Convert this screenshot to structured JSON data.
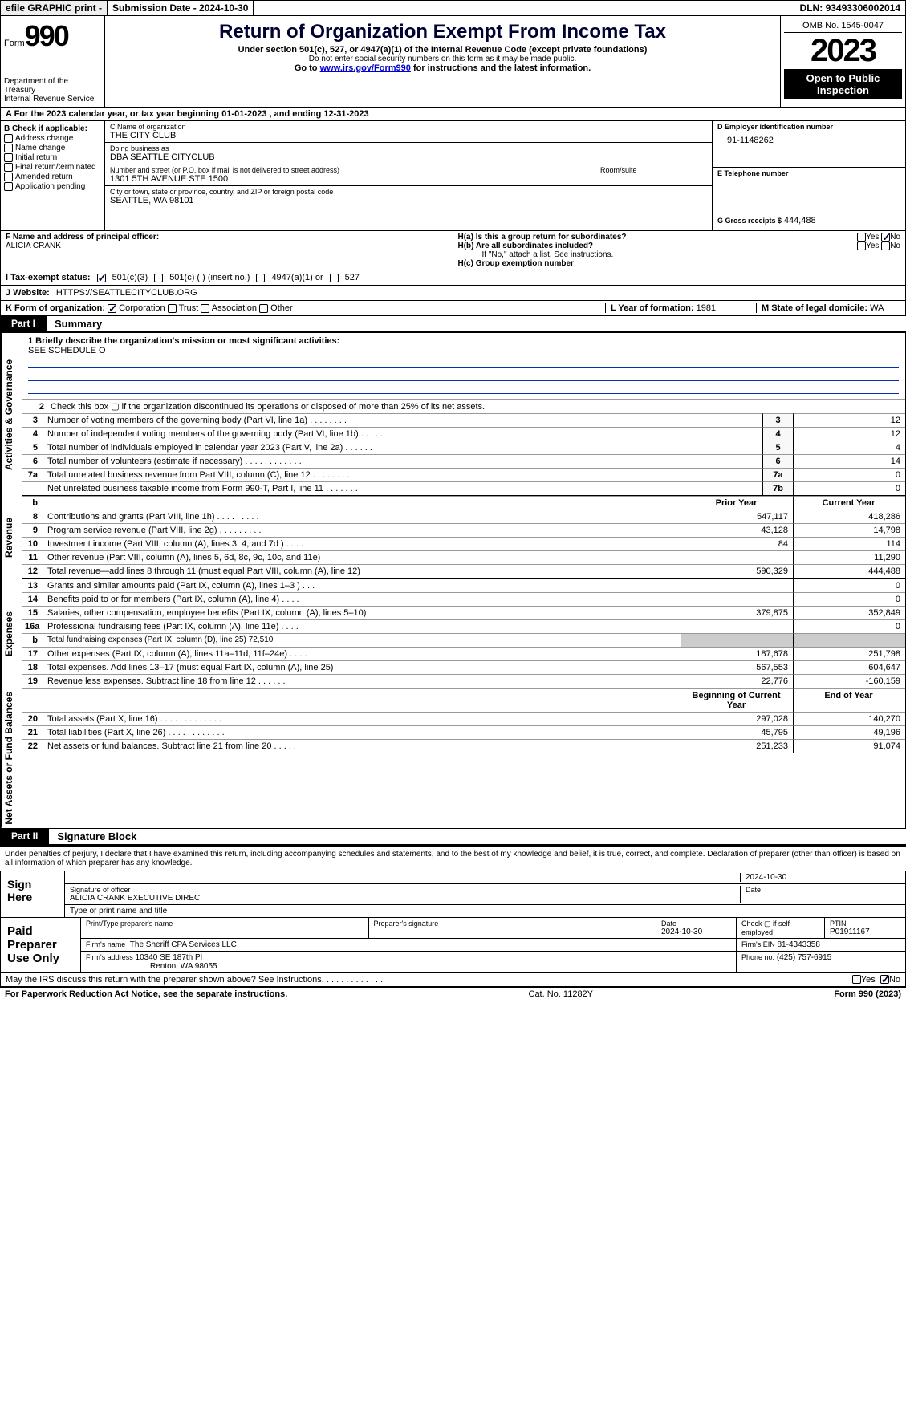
{
  "topbar": {
    "efile": "efile GRAPHIC print -",
    "submission": "Submission Date - 2024-10-30",
    "dln_label": "DLN:",
    "dln": "93493306002014"
  },
  "header": {
    "form_word": "Form",
    "form_num": "990",
    "dept": "Department of the Treasury\nInternal Revenue Service",
    "title": "Return of Organization Exempt From Income Tax",
    "subtitle": "Under section 501(c), 527, or 4947(a)(1) of the Internal Revenue Code (except private foundations)",
    "note": "Do not enter social security numbers on this form as it may be made public.",
    "goto_pre": "Go to ",
    "goto_link": "www.irs.gov/Form990",
    "goto_post": " for instructions and the latest information.",
    "omb": "OMB No. 1545-0047",
    "year": "2023",
    "open": "Open to Public Inspection"
  },
  "sectionA": "A  For the 2023 calendar year, or tax year beginning 01-01-2023    , and ending 12-31-2023",
  "b": {
    "label": "B Check if applicable:",
    "items": [
      "Address change",
      "Name change",
      "Initial return",
      "Final return/terminated",
      "Amended return",
      "Application pending"
    ]
  },
  "c": {
    "name_lbl": "C Name of organization",
    "name": "THE CITY CLUB",
    "dba_lbl": "Doing business as",
    "dba": "DBA SEATTLE CITYCLUB",
    "addr_lbl": "Number and street (or P.O. box if mail is not delivered to street address)",
    "addr": "1301 5TH AVENUE STE 1500",
    "room_lbl": "Room/suite",
    "city_lbl": "City or town, state or province, country, and ZIP or foreign postal code",
    "city": "SEATTLE, WA   98101"
  },
  "d": {
    "ein_lbl": "D Employer identification number",
    "ein": "91-1148262",
    "tel_lbl": "E Telephone number",
    "gross_lbl": "G Gross receipts $",
    "gross": "444,488"
  },
  "f": {
    "lbl": "F  Name and address of principal officer:",
    "name": "ALICIA CRANK"
  },
  "h": {
    "a_lbl": "H(a)  Is this a group return for subordinates?",
    "b_lbl": "H(b)  Are all subordinates included?",
    "b_note": "If \"No,\" attach a list. See instructions.",
    "c_lbl": "H(c)  Group exemption number",
    "yes": "Yes",
    "no": "No"
  },
  "i": {
    "lbl": "I   Tax-exempt status:",
    "o1": "501(c)(3)",
    "o2": "501(c) (  ) (insert no.)",
    "o3": "4947(a)(1) or",
    "o4": "527"
  },
  "j": {
    "lbl": "J   Website:",
    "val": "HTTPS://SEATTLECITYCLUB.ORG"
  },
  "k": {
    "lbl": "K Form of organization:",
    "o1": "Corporation",
    "o2": "Trust",
    "o3": "Association",
    "o4": "Other",
    "l_lbl": "L Year of formation:",
    "l_val": "1981",
    "m_lbl": "M State of legal domicile:",
    "m_val": "WA"
  },
  "part1": {
    "tag": "Part I",
    "title": "Summary"
  },
  "mission": {
    "lbl": "1   Briefly describe the organization's mission or most significant activities:",
    "val": "SEE SCHEDULE O"
  },
  "gov_rows": [
    {
      "n": "2",
      "t": "Check this box ▢ if the organization discontinued its operations or disposed of more than 25% of its net assets."
    },
    {
      "n": "3",
      "t": "Number of voting members of the governing body (Part VI, line 1a)   .    .    .    .    .    .    .    .",
      "box": "3",
      "v": "12"
    },
    {
      "n": "4",
      "t": "Number of independent voting members of the governing body (Part VI, line 1b)   .    .    .    .    .",
      "box": "4",
      "v": "12"
    },
    {
      "n": "5",
      "t": "Total number of individuals employed in calendar year 2023 (Part V, line 2a)   .    .    .    .    .    .",
      "box": "5",
      "v": "4"
    },
    {
      "n": "6",
      "t": "Total number of volunteers (estimate if necessary)   .    .    .    .    .    .    .    .    .    .    .    .",
      "box": "6",
      "v": "14"
    },
    {
      "n": "7a",
      "t": "Total unrelated business revenue from Part VIII, column (C), line 12   .    .    .    .    .    .    .    .",
      "box": "7a",
      "v": "0"
    },
    {
      "n": "",
      "t": "Net unrelated business taxable income from Form 990-T, Part I, line 11   .    .    .    .    .    .    .",
      "box": "7b",
      "v": "0"
    }
  ],
  "labels": {
    "gov": "Activities & Governance",
    "rev": "Revenue",
    "exp": "Expenses",
    "net": "Net Assets or Fund Balances",
    "prior": "Prior Year",
    "current": "Current Year",
    "bcy": "Beginning of Current Year",
    "eoy": "End of Year",
    "b": "b"
  },
  "rev_rows": [
    {
      "n": "8",
      "t": "Contributions and grants (Part VIII, line 1h)    .    .    .    .    .    .    .    .    .",
      "py": "547,117",
      "cy": "418,286"
    },
    {
      "n": "9",
      "t": "Program service revenue (Part VIII, line 2g)   .    .    .    .    .    .    .    .    .",
      "py": "43,128",
      "cy": "14,798"
    },
    {
      "n": "10",
      "t": "Investment income (Part VIII, column (A), lines 3, 4, and 7d )   .    .    .    .",
      "py": "84",
      "cy": "114"
    },
    {
      "n": "11",
      "t": "Other revenue (Part VIII, column (A), lines 5, 6d, 8c, 9c, 10c, and 11e)",
      "py": "",
      "cy": "11,290"
    },
    {
      "n": "12",
      "t": "Total revenue—add lines 8 through 11 (must equal Part VIII, column (A), line 12)",
      "py": "590,329",
      "cy": "444,488"
    }
  ],
  "exp_rows": [
    {
      "n": "13",
      "t": "Grants and similar amounts paid (Part IX, column (A), lines 1–3 )   .    .    .",
      "py": "",
      "cy": "0"
    },
    {
      "n": "14",
      "t": "Benefits paid to or for members (Part IX, column (A), line 4)   .    .    .    .",
      "py": "",
      "cy": "0"
    },
    {
      "n": "15",
      "t": "Salaries, other compensation, employee benefits (Part IX, column (A), lines 5–10)",
      "py": "379,875",
      "cy": "352,849"
    },
    {
      "n": "16a",
      "t": "Professional fundraising fees (Part IX, column (A), line 11e)   .    .    .    .",
      "py": "",
      "cy": "0"
    },
    {
      "n": "b",
      "t": "Total fundraising expenses (Part IX, column (D), line 25) 72,510",
      "shade": true
    },
    {
      "n": "17",
      "t": "Other expenses (Part IX, column (A), lines 11a–11d, 11f–24e)   .    .    .    .",
      "py": "187,678",
      "cy": "251,798"
    },
    {
      "n": "18",
      "t": "Total expenses. Add lines 13–17 (must equal Part IX, column (A), line 25)",
      "py": "567,553",
      "cy": "604,647"
    },
    {
      "n": "19",
      "t": "Revenue less expenses. Subtract line 18 from line 12   .    .    .    .    .    .",
      "py": "22,776",
      "cy": "-160,159"
    }
  ],
  "net_rows": [
    {
      "n": "20",
      "t": "Total assets (Part X, line 16)   .    .    .    .    .    .    .    .    .    .    .    .    .",
      "py": "297,028",
      "cy": "140,270"
    },
    {
      "n": "21",
      "t": "Total liabilities (Part X, line 26)   .    .    .    .    .    .    .    .    .    .    .    .",
      "py": "45,795",
      "cy": "49,196"
    },
    {
      "n": "22",
      "t": "Net assets or fund balances. Subtract line 21 from line 20   .    .    .    .    .",
      "py": "251,233",
      "cy": "91,074"
    }
  ],
  "part2": {
    "tag": "Part II",
    "title": "Signature Block"
  },
  "perjury": "Under penalties of perjury, I declare that I have examined this return, including accompanying schedules and statements, and to the best of my knowledge and belief, it is true, correct, and complete. Declaration of preparer (other than officer) is based on all information of which preparer has any knowledge.",
  "sign": {
    "here": "Sign Here",
    "date_top": "2024-10-30",
    "sig_lbl": "Signature of officer",
    "officer": "ALICIA CRANK  EXECUTIVE DIREC",
    "date_lbl": "Date",
    "type_lbl": "Type or print name and title"
  },
  "prep": {
    "label": "Paid Preparer Use Only",
    "h1": "Print/Type preparer's name",
    "h2": "Preparer's signature",
    "h3_lbl": "Date",
    "h3": "2024-10-30",
    "h4": "Check ▢ if self-employed",
    "h5_lbl": "PTIN",
    "h5": "P01911167",
    "firm_lbl": "Firm's name",
    "firm": "The Sheriff CPA Services LLC",
    "ein_lbl": "Firm's EIN",
    "ein": "81-4343358",
    "addr_lbl": "Firm's address",
    "addr1": "10340 SE 187th Pl",
    "addr2": "Renton, WA   98055",
    "phone_lbl": "Phone no.",
    "phone": "(425) 757-6915"
  },
  "discuss": {
    "q": "May the IRS discuss this return with the preparer shown above? See Instructions.    .    .    .    .    .    .    .    .    .    .    .    .",
    "yes": "Yes",
    "no": "No"
  },
  "footer": {
    "l": "For Paperwork Reduction Act Notice, see the separate instructions.",
    "c": "Cat. No. 11282Y",
    "r": "Form 990 (2023)"
  }
}
